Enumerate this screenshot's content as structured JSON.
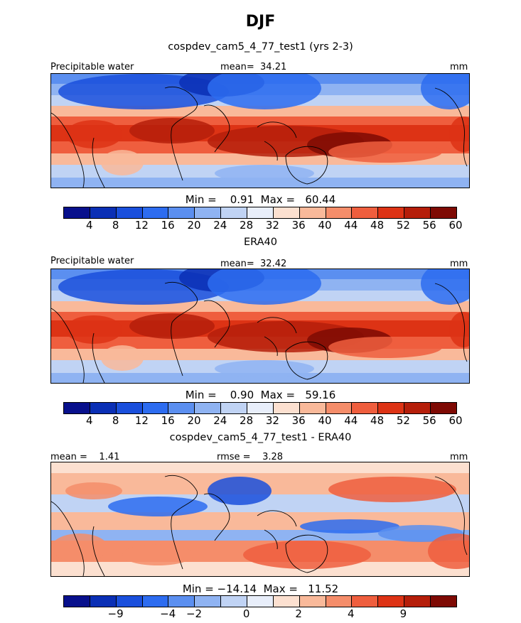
{
  "figure": {
    "title": "DJF"
  },
  "panels": [
    {
      "title": "cospdev_cam5_4_77_test1 (yrs 2-3)",
      "left_label": "Precipitable water",
      "center_label": "mean=  34.21",
      "right_label": "mm",
      "minmax": "Min =    0.91  Max =   60.44"
    },
    {
      "title": "ERA40",
      "left_label": "Precipitable water",
      "center_label": "mean=  32.42",
      "right_label": "mm",
      "minmax": "Min =    0.90  Max =   59.16"
    },
    {
      "title": "cospdev_cam5_4_77_test1 - ERA40",
      "left_label": "mean =    1.41",
      "center_label": "rmse =    3.28",
      "right_label": "mm",
      "minmax": "Min = −14.14  Max =   11.52"
    }
  ],
  "colorbars": [
    {
      "ticks": [
        "4",
        "8",
        "12",
        "16",
        "20",
        "24",
        "28",
        "32",
        "36",
        "40",
        "44",
        "48",
        "52",
        "56",
        "60"
      ]
    },
    {
      "ticks": [
        "4",
        "8",
        "12",
        "16",
        "20",
        "24",
        "28",
        "32",
        "36",
        "40",
        "44",
        "48",
        "52",
        "56",
        "60"
      ]
    },
    {
      "ticks": [
        "−9",
        "−4",
        "−2",
        "0",
        "2",
        "4",
        "9"
      ]
    }
  ],
  "palette": [
    "#08108c",
    "#0a2fb5",
    "#1a4fdc",
    "#2d6cf0",
    "#5b8ff0",
    "#8fb3f2",
    "#c0d3f4",
    "#e8eefa",
    "#fce0d0",
    "#f9b99a",
    "#f58d6a",
    "#ef5e3e",
    "#dd3315",
    "#b51e0a",
    "#7e0a04"
  ],
  "chart_data": [
    {
      "type": "heatmap",
      "variable": "Precipitable water",
      "units": "mm",
      "panel": "cospdev_cam5_4_77_test1 (yrs 2-3)",
      "mean": 34.21,
      "min": 0.91,
      "max": 60.44,
      "contour_levels": [
        4,
        8,
        12,
        16,
        20,
        24,
        28,
        32,
        36,
        40,
        44,
        48,
        52,
        56,
        60
      ]
    },
    {
      "type": "heatmap",
      "variable": "Precipitable water",
      "units": "mm",
      "panel": "ERA40",
      "mean": 32.42,
      "min": 0.9,
      "max": 59.16,
      "contour_levels": [
        4,
        8,
        12,
        16,
        20,
        24,
        28,
        32,
        36,
        40,
        44,
        48,
        52,
        56,
        60
      ]
    },
    {
      "type": "heatmap",
      "units": "mm",
      "panel": "cospdev_cam5_4_77_test1 - ERA40",
      "mean": 1.41,
      "rmse": 3.28,
      "min": -14.14,
      "max": 11.52,
      "contour_levels": [
        -9,
        -4,
        -2,
        0,
        2,
        4,
        9
      ]
    }
  ]
}
